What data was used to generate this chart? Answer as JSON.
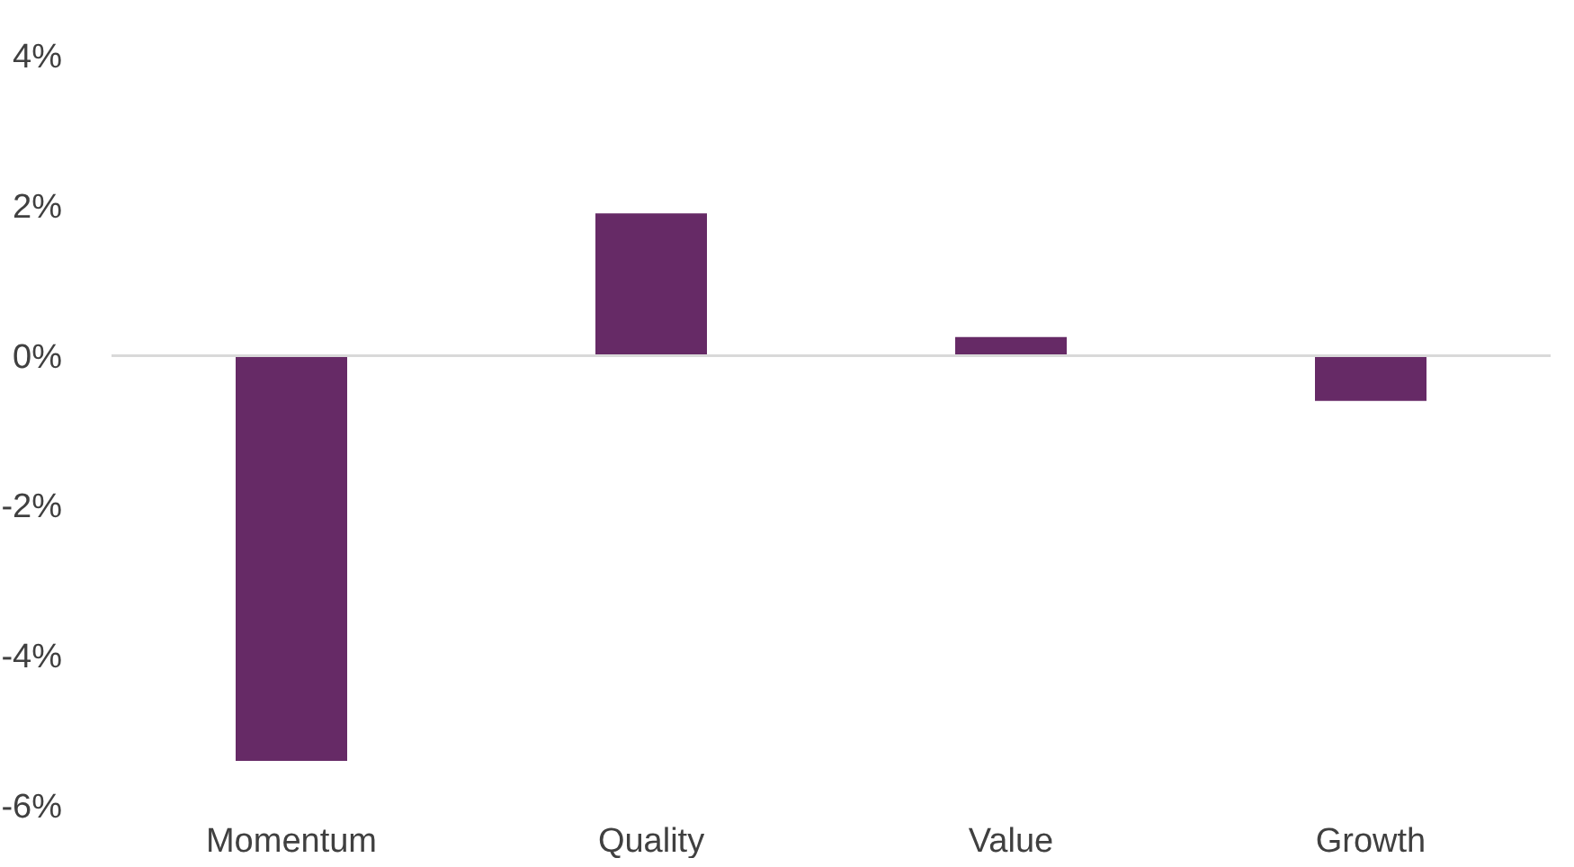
{
  "chart_data": {
    "type": "bar",
    "categories": [
      "Momentum",
      "Quality",
      "Value",
      "Growth"
    ],
    "values": [
      -5.4,
      1.9,
      0.25,
      -0.6
    ],
    "color": "#662a66",
    "ylim": [
      -6,
      4
    ],
    "yticks": [
      {
        "value": -6,
        "label": "-6%"
      },
      {
        "value": -4,
        "label": "-4%"
      },
      {
        "value": -2,
        "label": "-2%"
      },
      {
        "value": 0,
        "label": "0%"
      },
      {
        "value": 2,
        "label": "2%"
      },
      {
        "value": 4,
        "label": "4%"
      }
    ],
    "grid": false,
    "ref_lines": [
      {
        "axis": "y",
        "value": 0,
        "color": "#d9d9d9"
      }
    ]
  }
}
